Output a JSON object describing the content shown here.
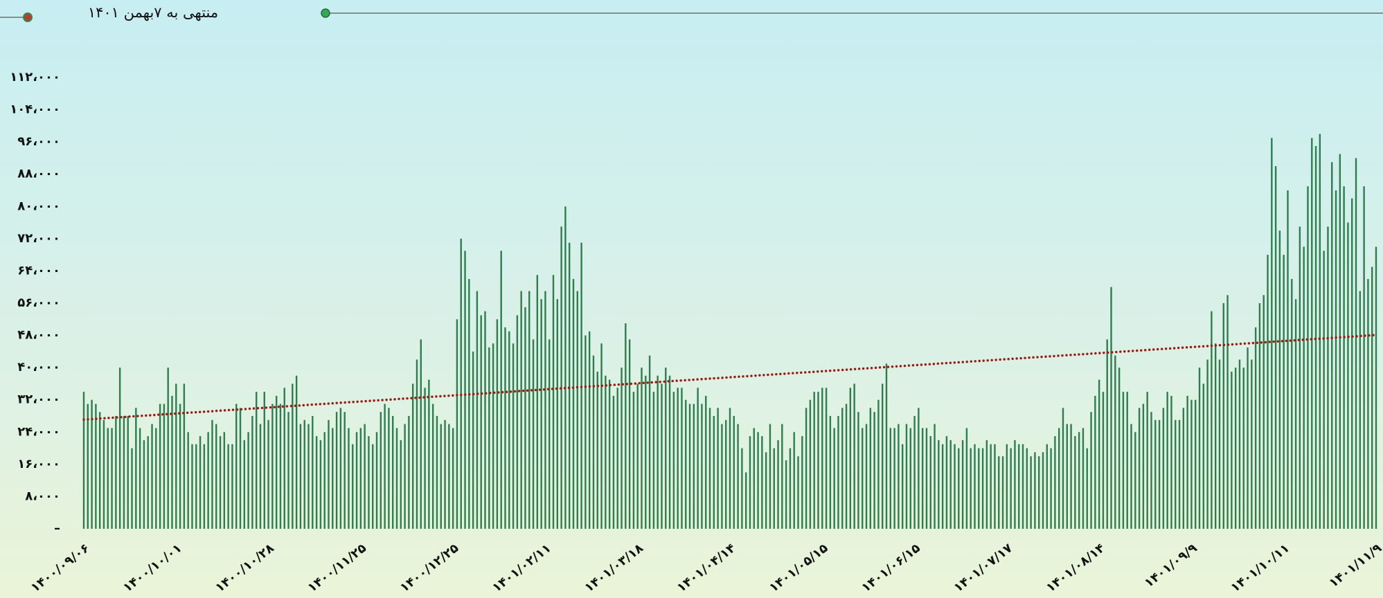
{
  "chart_data": {
    "type": "bar",
    "title": "منتهی به ۷بهمن ۱۴۰۱",
    "color": "#2e7d4f",
    "categories": [
      "۱۴۰۰/۰۹/۰۶",
      null,
      null,
      null,
      null,
      null,
      null,
      null,
      null,
      null,
      null,
      null,
      null,
      null,
      null,
      null,
      null,
      null,
      null,
      null,
      null,
      null,
      null,
      "۱۴۰۰/۱۰/۰۱",
      null,
      null,
      null,
      null,
      null,
      null,
      null,
      null,
      null,
      null,
      null,
      null,
      null,
      null,
      null,
      null,
      null,
      null,
      null,
      null,
      null,
      null,
      "۱۴۰۰/۱۰/۲۸",
      null,
      null,
      null,
      null,
      null,
      null,
      null,
      null,
      null,
      null,
      null,
      null,
      null,
      null,
      null,
      null,
      null,
      null,
      null,
      null,
      null,
      null,
      "۱۴۰۰/۱۱/۲۵",
      null,
      null,
      null,
      null,
      null,
      null,
      null,
      null,
      null,
      null,
      null,
      null,
      null,
      null,
      null,
      null,
      null,
      null,
      null,
      null,
      null,
      null,
      "۱۴۰۰/۱۲/۲۵",
      null,
      null,
      null,
      null,
      null,
      null,
      null,
      null,
      null,
      null,
      null,
      null,
      null,
      null,
      null,
      null,
      null,
      null,
      null,
      null,
      null,
      null,
      "۱۴۰۱/۰۲/۱۱",
      null,
      null,
      null,
      null,
      null,
      null,
      null,
      null,
      null,
      null,
      null,
      null,
      null,
      null,
      null,
      null,
      null,
      null,
      null,
      null,
      null,
      null,
      "۱۴۰۱/۰۳/۱۸",
      null,
      null,
      null,
      null,
      null,
      null,
      null,
      null,
      null,
      null,
      null,
      null,
      null,
      null,
      null,
      null,
      null,
      null,
      null,
      null,
      null,
      null,
      "۱۴۰۱/۰۴/۱۴",
      null,
      null,
      null,
      null,
      null,
      null,
      null,
      null,
      null,
      null,
      null,
      null,
      null,
      null,
      null,
      null,
      null,
      null,
      null,
      null,
      null,
      null,
      "۱۴۰۱/۰۵/۱۵",
      null,
      null,
      null,
      null,
      null,
      null,
      null,
      null,
      null,
      null,
      null,
      null,
      null,
      null,
      null,
      null,
      null,
      null,
      null,
      null,
      null,
      null,
      "۱۴۰۱/۰۶/۱۵",
      null,
      null,
      null,
      null,
      null,
      null,
      null,
      null,
      null,
      null,
      null,
      null,
      null,
      null,
      null,
      null,
      null,
      null,
      null,
      null,
      null,
      null,
      "۱۴۰۱/۰۷/۱۷",
      null,
      null,
      null,
      null,
      null,
      null,
      null,
      null,
      null,
      null,
      null,
      null,
      null,
      null,
      null,
      null,
      null,
      null,
      null,
      null,
      null,
      null,
      "۱۴۰۱/۰۸/۱۴",
      null,
      null,
      null,
      null,
      null,
      null,
      null,
      null,
      null,
      null,
      null,
      null,
      null,
      null,
      null,
      null,
      null,
      null,
      null,
      null,
      null,
      null,
      "۱۴۰۱/۰۹/۹",
      null,
      null,
      null,
      null,
      null,
      null,
      null,
      null,
      null,
      null,
      null,
      null,
      null,
      null,
      null,
      null,
      null,
      null,
      null,
      null,
      null,
      null,
      "۱۴۰۱/۱۰/۱۱",
      null,
      null,
      null,
      null,
      null,
      null,
      null,
      null,
      null,
      null,
      null,
      null,
      null,
      null,
      null,
      null,
      null,
      null,
      null,
      null,
      null,
      null,
      "۱۴۰۱/۱۱/۹"
    ],
    "values": [
      34000,
      31000,
      32000,
      31000,
      29000,
      27000,
      25000,
      25000,
      28000,
      40000,
      28000,
      28000,
      20000,
      30000,
      25000,
      22000,
      23000,
      26000,
      25000,
      31000,
      31000,
      40000,
      33000,
      36000,
      31000,
      36000,
      24000,
      21000,
      21000,
      23000,
      21000,
      24000,
      27000,
      26000,
      23000,
      24000,
      21000,
      21000,
      31000,
      30000,
      22000,
      24000,
      28000,
      34000,
      26000,
      34000,
      27000,
      31000,
      33000,
      31000,
      35000,
      29000,
      36000,
      38000,
      26000,
      27000,
      26000,
      28000,
      23000,
      22000,
      24000,
      27000,
      25000,
      29000,
      30000,
      29000,
      25000,
      21000,
      24000,
      25000,
      26000,
      23000,
      21000,
      24000,
      29000,
      31000,
      30000,
      28000,
      25000,
      22000,
      26000,
      28000,
      36000,
      42000,
      47000,
      35000,
      37000,
      31000,
      28000,
      26000,
      27000,
      26000,
      25000,
      52000,
      72000,
      69000,
      62000,
      44000,
      59000,
      53000,
      54000,
      45000,
      46000,
      52000,
      69000,
      50000,
      49000,
      46000,
      53000,
      59000,
      55000,
      59000,
      47000,
      63000,
      57000,
      59000,
      47000,
      63000,
      57000,
      75000,
      80000,
      71000,
      62000,
      59000,
      71000,
      48000,
      49000,
      43000,
      39000,
      46000,
      38000,
      37000,
      33000,
      35000,
      40000,
      51000,
      47000,
      34000,
      36000,
      40000,
      38000,
      43000,
      34000,
      38000,
      36000,
      40000,
      38000,
      34000,
      35000,
      35000,
      32000,
      31000,
      31000,
      35000,
      31000,
      33000,
      30000,
      28000,
      30000,
      26000,
      27000,
      30000,
      28000,
      26000,
      20000,
      14000,
      23000,
      25000,
      24000,
      23000,
      19000,
      26000,
      20000,
      22000,
      26000,
      17000,
      20000,
      24000,
      18000,
      23000,
      30000,
      32000,
      34000,
      34000,
      35000,
      35000,
      28000,
      25000,
      28000,
      30000,
      31000,
      35000,
      36000,
      29000,
      25000,
      26000,
      30000,
      29000,
      32000,
      36000,
      41000,
      25000,
      25000,
      26000,
      21000,
      26000,
      25000,
      28000,
      30000,
      25000,
      25000,
      23000,
      26000,
      22000,
      21000,
      23000,
      22000,
      21000,
      20000,
      22000,
      25000,
      20000,
      21000,
      20000,
      20000,
      22000,
      21000,
      21000,
      18000,
      18000,
      21000,
      20000,
      22000,
      21000,
      21000,
      20000,
      18000,
      19000,
      18000,
      19000,
      21000,
      20000,
      23000,
      25000,
      30000,
      26000,
      26000,
      23000,
      24000,
      25000,
      20000,
      29000,
      33000,
      37000,
      34000,
      47000,
      60000,
      43000,
      40000,
      34000,
      34000,
      26000,
      24000,
      30000,
      31000,
      34000,
      29000,
      27000,
      27000,
      30000,
      34000,
      33000,
      27000,
      27000,
      30000,
      33000,
      32000,
      32000,
      40000,
      36000,
      42000,
      54000,
      46000,
      42000,
      56000,
      58000,
      39000,
      40000,
      42000,
      40000,
      45000,
      42000,
      50000,
      56000,
      58000,
      68000,
      97000,
      90000,
      74000,
      68000,
      84000,
      62000,
      57000,
      75000,
      70000,
      85000,
      97000,
      95000,
      98000,
      69000,
      75000,
      91000,
      84000,
      93000,
      85000,
      76000,
      82000,
      92000,
      59000,
      85000,
      62000,
      65000,
      70000
    ],
    "ylim": [
      0,
      112000
    ],
    "yticks": [
      {
        "value": 0,
        "label": "–"
      },
      {
        "value": 8000,
        "label": "۸،۰۰۰"
      },
      {
        "value": 16000,
        "label": "۱۶،۰۰۰"
      },
      {
        "value": 24000,
        "label": "۲۴،۰۰۰"
      },
      {
        "value": 32000,
        "label": "۳۲،۰۰۰"
      },
      {
        "value": 40000,
        "label": "۴۰،۰۰۰"
      },
      {
        "value": 48000,
        "label": "۴۸،۰۰۰"
      },
      {
        "value": 56000,
        "label": "۵۶،۰۰۰"
      },
      {
        "value": 64000,
        "label": "۶۴،۰۰۰"
      },
      {
        "value": 72000,
        "label": "۷۲،۰۰۰"
      },
      {
        "value": 80000,
        "label": "۸۰،۰۰۰"
      },
      {
        "value": 88000,
        "label": "۸۸،۰۰۰"
      },
      {
        "value": 96000,
        "label": "۹۶،۰۰۰"
      },
      {
        "value": 104000,
        "label": "۱۰۴،۰۰۰"
      },
      {
        "value": 112000,
        "label": "۱۱۲،۰۰۰"
      }
    ],
    "trend": {
      "start": 27100,
      "end": 48100,
      "color": "#9b1b12"
    }
  }
}
